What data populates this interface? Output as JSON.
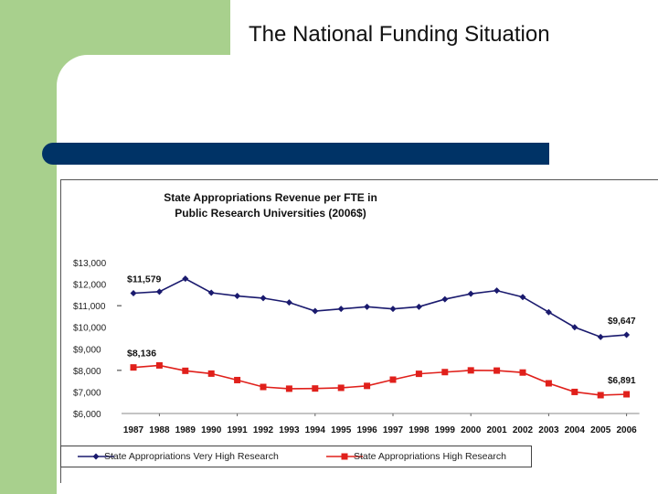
{
  "slide": {
    "title": "The National Funding Situation",
    "colors": {
      "side_bar": "#a8d08d",
      "rule": "#003366"
    }
  },
  "chart_data": {
    "type": "line",
    "title_lines": [
      "State Appropriations Revenue per FTE in",
      "Public Research Universities (2006$)"
    ],
    "x": [
      "1987",
      "1988",
      "1989",
      "1990",
      "1991",
      "1992",
      "1993",
      "1994",
      "1995",
      "1996",
      "1997",
      "1998",
      "1999",
      "2000",
      "2001",
      "2002",
      "2003",
      "2004",
      "2005",
      "2006"
    ],
    "yticks": [
      "$6,000",
      "$7,000",
      "$8,000",
      "$9,000",
      "$10,000",
      "$11,000",
      "$12,000",
      "$13,000"
    ],
    "ylim": [
      6000,
      13000
    ],
    "series": [
      {
        "name": "State Appropriations Very High Research",
        "color": "#1a1a6e",
        "marker": "diamond",
        "values": [
          11579,
          11650,
          12250,
          11600,
          11450,
          11350,
          11150,
          10750,
          10850,
          10950,
          10850,
          10950,
          11300,
          11550,
          11700,
          11400,
          10700,
          10000,
          9550,
          9647
        ],
        "labels": [
          {
            "index": 0,
            "text": "$11,579",
            "pos": "above"
          },
          {
            "index": 19,
            "text": "$9,647",
            "pos": "above"
          }
        ]
      },
      {
        "name": "State Appropriations High Research",
        "color": "#e0201b",
        "marker": "square",
        "values": [
          8136,
          8230,
          7980,
          7850,
          7550,
          7230,
          7150,
          7160,
          7190,
          7280,
          7570,
          7840,
          7920,
          8000,
          7990,
          7900,
          7400,
          7000,
          6850,
          6891
        ],
        "labels": [
          {
            "index": 0,
            "text": "$8,136",
            "pos": "above"
          },
          {
            "index": 19,
            "text": "$6,891",
            "pos": "above"
          }
        ]
      }
    ],
    "legend_position": "bottom"
  }
}
